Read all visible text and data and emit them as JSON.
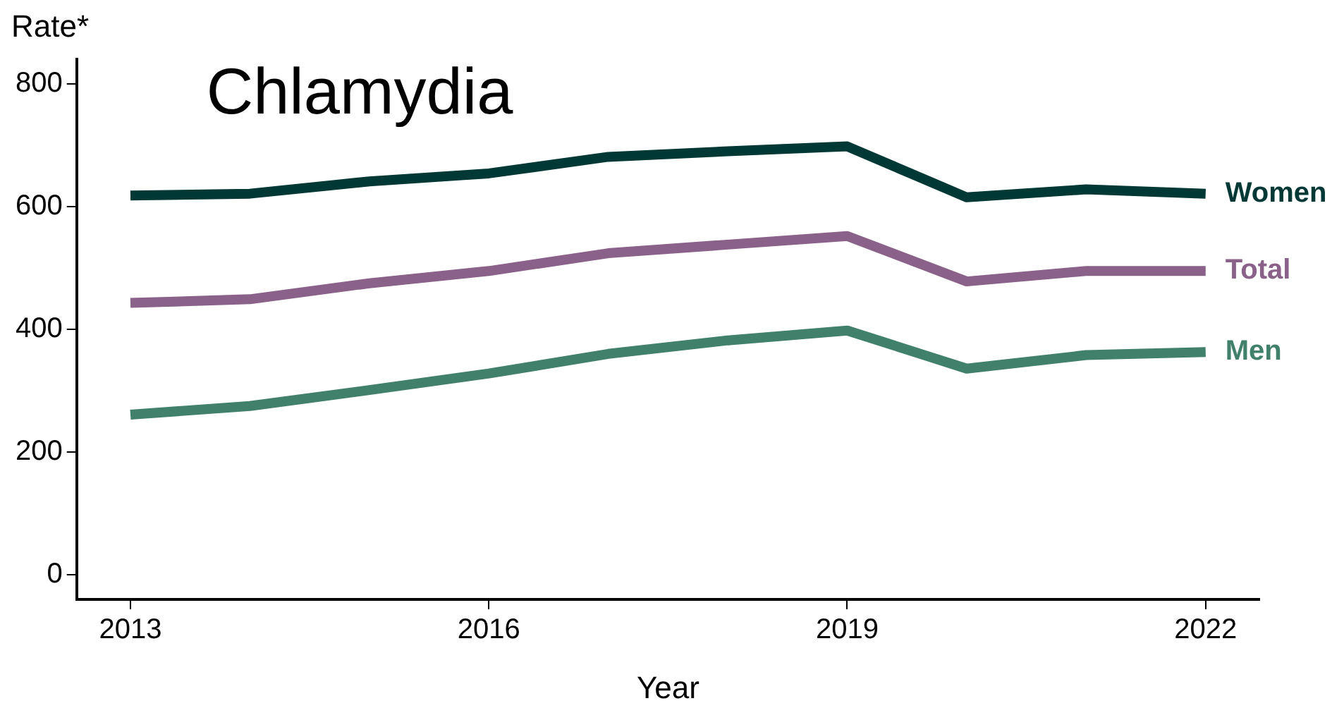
{
  "chart_data": {
    "type": "line",
    "title": "Chlamydia",
    "xlabel": "Year",
    "ylabel": "Rate*",
    "x": [
      2013,
      2014,
      2015,
      2016,
      2017,
      2018,
      2019,
      2020,
      2021,
      2022
    ],
    "xlim": [
      2012.55,
      2022.45
    ],
    "xticks": [
      2013,
      2016,
      2019,
      2022
    ],
    "ylim": [
      -40,
      840
    ],
    "yticks": [
      0,
      200,
      400,
      600,
      800
    ],
    "grid": false,
    "legend": false,
    "marker": "none",
    "line_style": "solid",
    "series": [
      {
        "name": "Women",
        "color": "#003835",
        "values": [
          618,
          621,
          641,
          654,
          681,
          690,
          698,
          615,
          628,
          621
        ]
      },
      {
        "name": "Total",
        "color": "#8a6189",
        "values": [
          443,
          449,
          475,
          495,
          524,
          538,
          552,
          478,
          495,
          495
        ]
      },
      {
        "name": "Men",
        "color": "#41806a",
        "values": [
          261,
          275,
          301,
          328,
          360,
          382,
          398,
          336,
          358,
          363
        ]
      }
    ]
  }
}
